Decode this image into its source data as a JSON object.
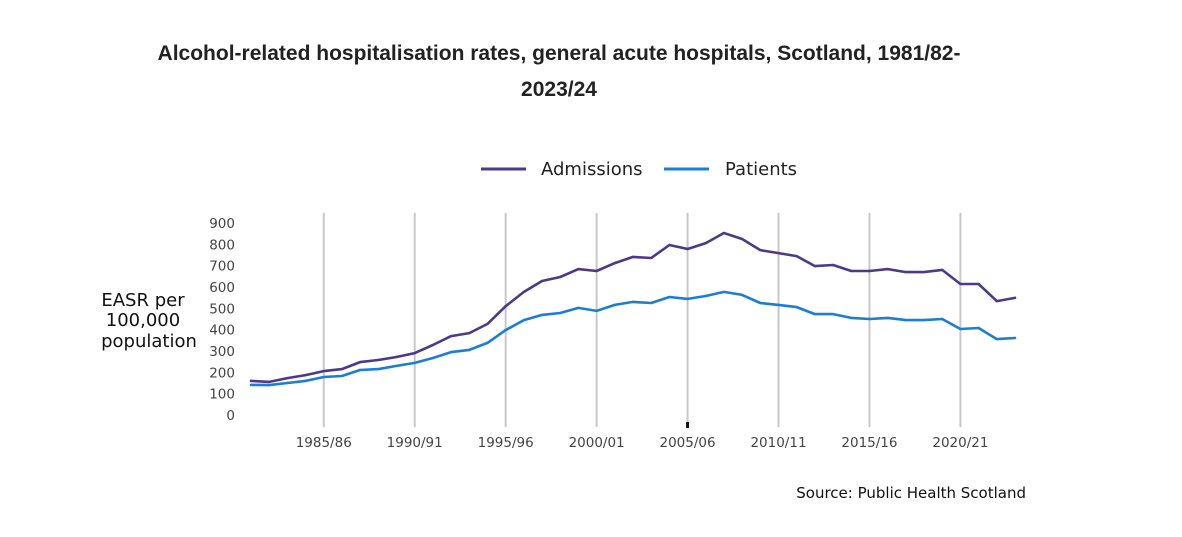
{
  "chart_data": {
    "type": "line",
    "title_lines": [
      "Alcohol-related hospitalisation rates, general acute hospitals, Scotland, 1981/82-",
      "2023/24"
    ],
    "xlabel": "",
    "ylabel_lines": [
      "EASR per",
      "100,000",
      "population"
    ],
    "ylim": [
      0,
      900
    ],
    "yticks": [
      0,
      100,
      200,
      300,
      400,
      500,
      600,
      700,
      800,
      900
    ],
    "xtick_labels": [
      "1985/86",
      "1990/91",
      "1995/96",
      "2000/01",
      "2005/06",
      "2010/11",
      "2015/16",
      "2020/21"
    ],
    "grid": "vertical",
    "legend_position": "top-center",
    "source": "Source: Public Health Scotland",
    "x": [
      "1981/82",
      "1982/83",
      "1983/84",
      "1984/85",
      "1985/86",
      "1986/87",
      "1987/88",
      "1988/89",
      "1989/90",
      "1990/91",
      "1991/92",
      "1992/93",
      "1993/94",
      "1994/95",
      "1995/96",
      "1996/97",
      "1997/98",
      "1998/99",
      "1999/00",
      "2000/01",
      "2001/02",
      "2002/03",
      "2003/04",
      "2004/05",
      "2005/06",
      "2006/07",
      "2007/08",
      "2008/09",
      "2009/10",
      "2010/11",
      "2011/12",
      "2012/13",
      "2013/14",
      "2014/15",
      "2015/16",
      "2016/17",
      "2017/18",
      "2018/19",
      "2019/20",
      "2020/21",
      "2021/22",
      "2022/23",
      "2023/24"
    ],
    "series": [
      {
        "name": "Admissions",
        "color": "#4b3a8c",
        "values": [
          160,
          155,
          173,
          187,
          206,
          215,
          248,
          258,
          272,
          290,
          328,
          370,
          384,
          427,
          510,
          577,
          628,
          647,
          684,
          675,
          712,
          741,
          736,
          797,
          778,
          806,
          853,
          825,
          773,
          759,
          745,
          698,
          703,
          675,
          675,
          684,
          670,
          670,
          680,
          614,
          614,
          534,
          549
        ]
      },
      {
        "name": "Patients",
        "color": "#1a7ed4",
        "values": [
          141,
          140,
          150,
          160,
          178,
          183,
          211,
          215,
          230,
          244,
          267,
          295,
          305,
          338,
          398,
          445,
          469,
          478,
          502,
          488,
          516,
          530,
          525,
          553,
          544,
          558,
          577,
          563,
          525,
          516,
          506,
          473,
          473,
          455,
          450,
          455,
          445,
          445,
          450,
          403,
          408,
          356,
          361
        ]
      }
    ]
  }
}
